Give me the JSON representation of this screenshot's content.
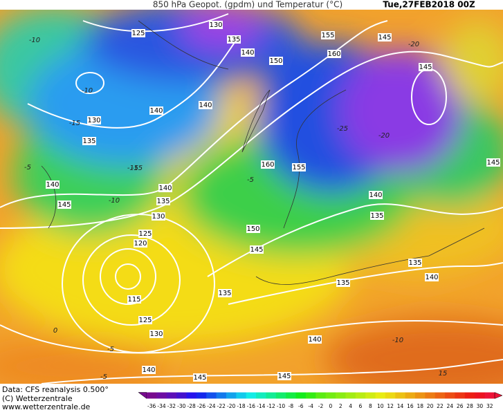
{
  "header": {
    "title": "850 hPa Geopot. (gpdm) und Temperatur (°C)",
    "date": "Tue,27FEB2018 00Z"
  },
  "footer": {
    "source": "Data: CFS reanalysis 0.500°",
    "copyright": "(C) Wetterzentrale",
    "url": "www.wetterzentrale.de"
  },
  "colorbar": {
    "labels": [
      -36,
      -34,
      -32,
      -30,
      -28,
      -26,
      -24,
      -22,
      -20,
      -18,
      -16,
      -14,
      -12,
      -10,
      -8,
      -6,
      -4,
      -2,
      0,
      2,
      4,
      6,
      8,
      10,
      12,
      14,
      16,
      18,
      20,
      22,
      24,
      26,
      28,
      30,
      32
    ]
  },
  "contour_labels": [
    125,
    130,
    135,
    140,
    150,
    155,
    160,
    145,
    145,
    140,
    140,
    130,
    135,
    140,
    145,
    160,
    155,
    140,
    135,
    130,
    125,
    120,
    140,
    135,
    150,
    145,
    135,
    140,
    135,
    115,
    125,
    130,
    135,
    140,
    140,
    145,
    145,
    145
  ],
  "temperature_labels": [
    -10,
    -15,
    -10,
    -15,
    -5,
    -10,
    -5,
    -20,
    -25,
    -20,
    -10,
    -5,
    -15,
    -5,
    0,
    15
  ]
}
